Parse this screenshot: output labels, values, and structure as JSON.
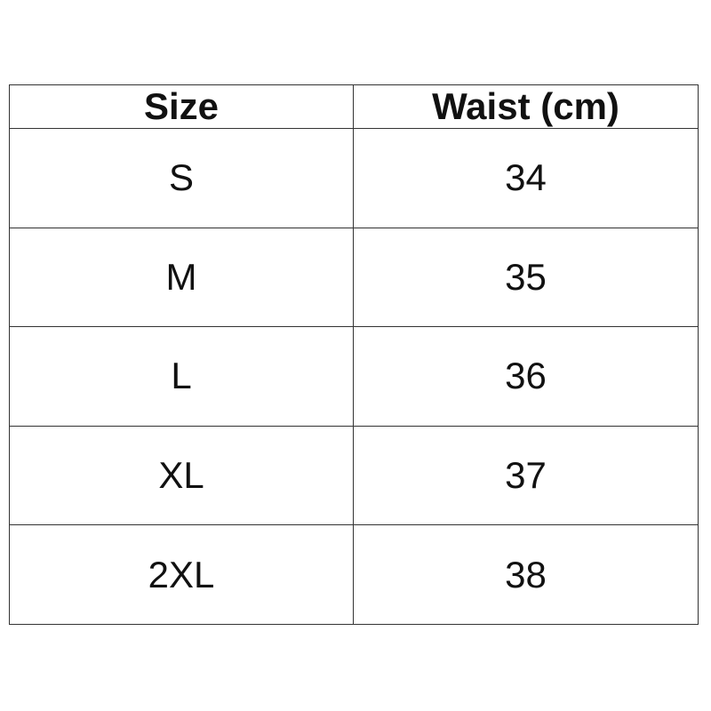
{
  "table": {
    "header": [
      "Size",
      "Waist (cm)"
    ],
    "rows": [
      [
        "S",
        34
      ],
      [
        "M",
        35
      ],
      [
        "L",
        36
      ],
      [
        "XL",
        37
      ],
      [
        "2XL",
        38
      ]
    ]
  }
}
